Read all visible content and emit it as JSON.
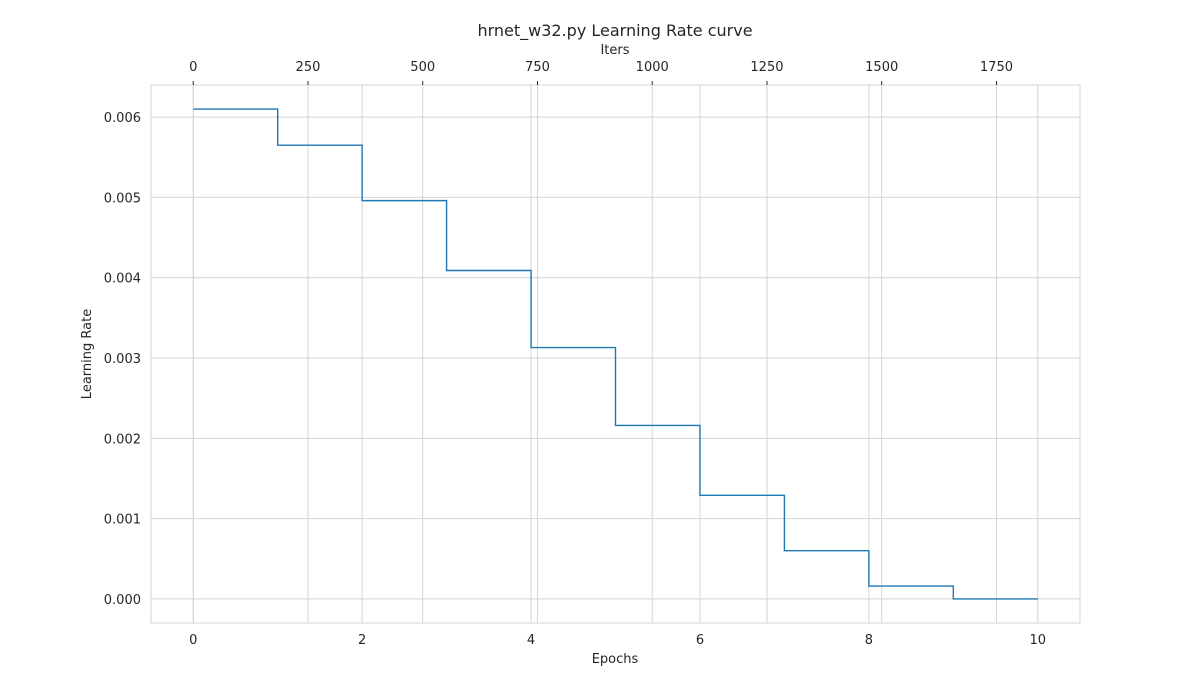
{
  "chart_data": {
    "type": "line",
    "title": "hrnet_w32.py Learning Rate curve",
    "xlabel": "Epochs",
    "ylabel": "Learning Rate",
    "x2label": "Iters",
    "xlim": [
      -0.5,
      10.5
    ],
    "ylim": [
      -0.0003,
      0.0064
    ],
    "x_ticks": [
      0,
      2,
      4,
      6,
      8,
      10
    ],
    "x_tick_labels": [
      "0",
      "2",
      "4",
      "6",
      "8",
      "10"
    ],
    "y_ticks": [
      0.0,
      0.001,
      0.002,
      0.003,
      0.004,
      0.005,
      0.006
    ],
    "y_tick_labels": [
      "0.000",
      "0.001",
      "0.002",
      "0.003",
      "0.004",
      "0.005",
      "0.006"
    ],
    "x2_ticks": [
      0,
      250,
      500,
      750,
      1000,
      1250,
      1500,
      1750
    ],
    "x2_tick_labels": [
      "0",
      "250",
      "500",
      "750",
      "1000",
      "1250",
      "1500",
      "1750"
    ],
    "epochs_to_iters_ratio": 184,
    "grid": true,
    "line_color": "#1f77b4",
    "series": [
      {
        "style": "step",
        "x": [
          0,
          1,
          2,
          3,
          4,
          5,
          6,
          7,
          8,
          9,
          10
        ],
        "values": [
          0.0061,
          0.00565,
          0.00496,
          0.00409,
          0.00313,
          0.00216,
          0.00129,
          0.0006,
          0.00016,
          0.0,
          0.0
        ]
      }
    ]
  }
}
